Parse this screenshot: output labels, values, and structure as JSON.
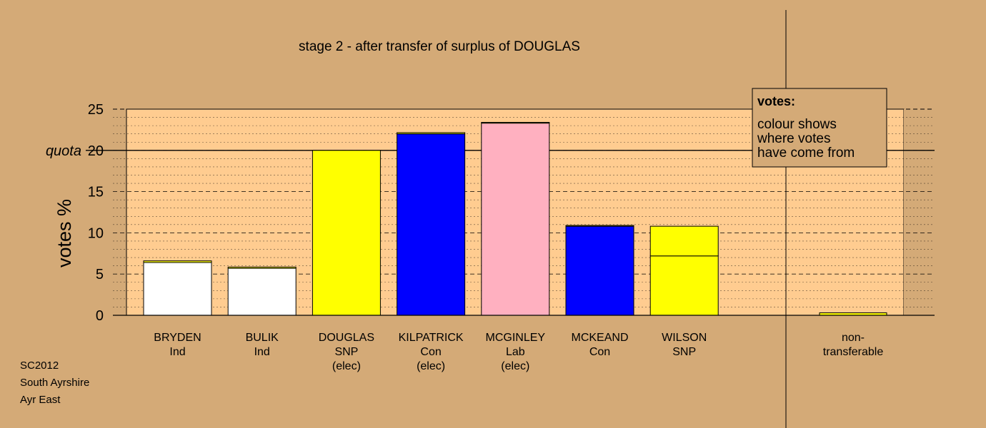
{
  "chart_data": {
    "type": "bar",
    "stacked": true,
    "title": "stage 2 - after transfer of surplus of DOUGLAS",
    "ylabel": "votes %",
    "ylim": [
      0,
      25
    ],
    "yticks": [
      0,
      5,
      10,
      15,
      20,
      25
    ],
    "quota_label": "quota",
    "quota_value": 20,
    "grid": true,
    "categories": [
      {
        "lines": [
          "BRYDEN",
          "Ind"
        ],
        "segments": [
          {
            "value": 6.4,
            "color": "#ffffff"
          },
          {
            "value": 0.2,
            "color": "#ffff00"
          }
        ]
      },
      {
        "lines": [
          "BULIK",
          "Ind"
        ],
        "segments": [
          {
            "value": 5.7,
            "color": "#ffffff"
          },
          {
            "value": 0.15,
            "color": "#ffff00"
          }
        ]
      },
      {
        "lines": [
          "DOUGLAS",
          "SNP",
          "(elec)"
        ],
        "segments": [
          {
            "value": 20.0,
            "color": "#ffff00"
          }
        ]
      },
      {
        "lines": [
          "KILPATRICK",
          "Con",
          "(elec)"
        ],
        "segments": [
          {
            "value": 22.0,
            "color": "#0000ff"
          },
          {
            "value": 0.15,
            "color": "#ffff00"
          }
        ]
      },
      {
        "lines": [
          "MCGINLEY",
          "Lab",
          "(elec)"
        ],
        "segments": [
          {
            "value": 23.3,
            "color": "#ffb0c0"
          },
          {
            "value": 0.1,
            "color": "#ffff00"
          }
        ]
      },
      {
        "lines": [
          "MCKEAND",
          "Con"
        ],
        "segments": [
          {
            "value": 10.8,
            "color": "#0000ff"
          },
          {
            "value": 0.1,
            "color": "#ffff00"
          }
        ]
      },
      {
        "lines": [
          "WILSON",
          "SNP"
        ],
        "segments": [
          {
            "value": 7.2,
            "color": "#ffff00"
          },
          {
            "value": 3.6,
            "color": "#ffff00"
          }
        ]
      }
    ],
    "non_transferable": {
      "lines": [
        "non-",
        "transferable"
      ],
      "value": 0.3,
      "color": "#ffff00"
    },
    "legend": {
      "title": "votes:",
      "lines": [
        "colour shows",
        "where votes",
        "have come from"
      ],
      "placement": "top-right"
    },
    "footer": [
      "SC2012",
      "South Ayrshire",
      "Ayr East"
    ],
    "colors": {
      "background": "#d4aa77",
      "plot_area": "#ffcc90",
      "right_panel": "#d4aa77"
    }
  }
}
